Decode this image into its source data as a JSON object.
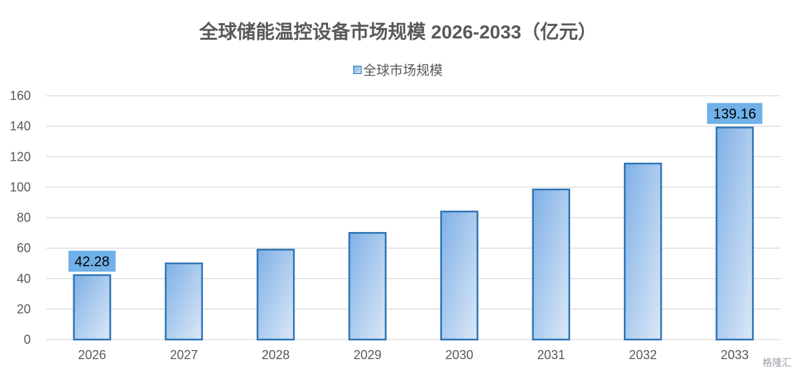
{
  "chart_data": {
    "type": "bar",
    "title": "全球储能温控设备市场规模 2026-2033（亿元）",
    "categories": [
      "2026",
      "2027",
      "2028",
      "2029",
      "2030",
      "2031",
      "2032",
      "2033"
    ],
    "series": [
      {
        "name": "全球市场规模",
        "values": [
          42.28,
          50,
          59,
          70,
          84,
          98.5,
          115.5,
          139.16
        ]
      }
    ],
    "data_labels": [
      {
        "category": "2026",
        "text": "42.28"
      },
      {
        "category": "2033",
        "text": "139.16"
      }
    ],
    "ylim": [
      0,
      160
    ],
    "yticks": [
      0,
      20,
      40,
      60,
      80,
      100,
      120,
      140,
      160
    ],
    "grid": true,
    "legend_position": "top-center",
    "colors": {
      "bar_top": "#7fb0e6",
      "bar_bottom": "#dbe8f7",
      "bar_border": "#2e75b6",
      "label_box": "#6fb1e8",
      "gridline": "#d9d9d9",
      "text": "#595959"
    }
  },
  "watermark": {
    "text": "格隆汇"
  }
}
